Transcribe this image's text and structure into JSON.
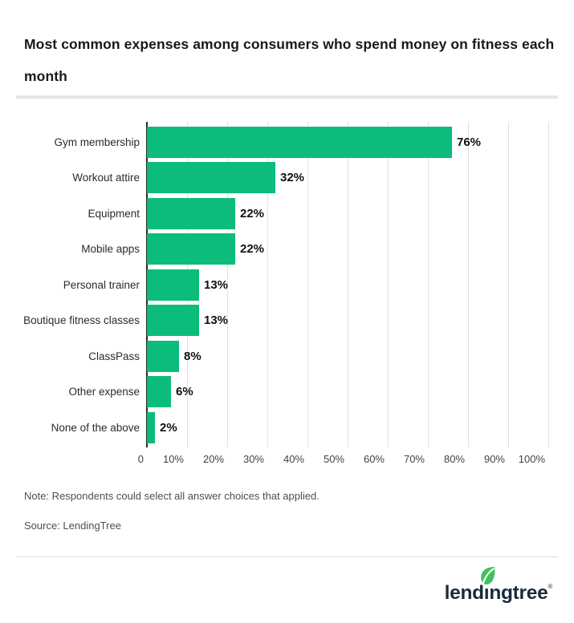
{
  "title": "Most common expenses among consumers who spend money on fitness each month",
  "chart_data": {
    "type": "bar",
    "orientation": "horizontal",
    "title": "Most common expenses among consumers who spend money on fitness each month",
    "categories": [
      "Gym membership",
      "Workout attire",
      "Equipment",
      "Mobile apps",
      "Personal trainer",
      "Boutique fitness classes",
      "ClassPass",
      "Other expense",
      "None of the above"
    ],
    "values": [
      76,
      32,
      22,
      22,
      13,
      13,
      8,
      6,
      2
    ],
    "value_labels": [
      "76%",
      "32%",
      "22%",
      "22%",
      "13%",
      "13%",
      "8%",
      "6%",
      "2%"
    ],
    "x_ticks": [
      "0",
      "10%",
      "20%",
      "30%",
      "40%",
      "50%",
      "60%",
      "70%",
      "80%",
      "90%",
      "100%"
    ],
    "xlim": [
      0,
      100
    ],
    "xlabel": "",
    "ylabel": "",
    "grid": true,
    "legend": "none",
    "bar_color": "#0cbc7a",
    "axis_color": "#2a2a2a",
    "gridline_color": "#e1e1e1"
  },
  "note": "Note: Respondents could select all answer choices that applied.",
  "source": "Source: LendingTree",
  "logo": {
    "name": "lendingtree",
    "registered": "®",
    "text_color": "#1b2b3c",
    "leaf_color": "#3fc15c"
  }
}
